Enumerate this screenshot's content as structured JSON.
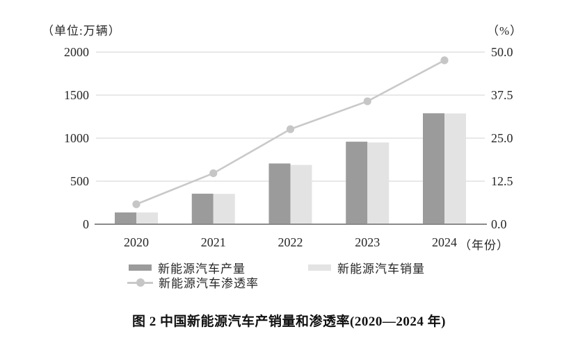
{
  "caption": "图 2  中国新能源汽车产销量和渗透率(2020—2024 年)",
  "chart_data": {
    "type": "combo",
    "title": "中国新能源汽车产销量和渗透率(2020—2024 年)",
    "categories": [
      "2020",
      "2021",
      "2022",
      "2023",
      "2024"
    ],
    "series": [
      {
        "key": "production",
        "name": "新能源汽车产量",
        "type": "bar",
        "axis": "left",
        "color": "#9b9b9b",
        "values": [
          136.6,
          354.5,
          705.8,
          958.7,
          1288.8
        ]
      },
      {
        "key": "sales",
        "name": "新能源汽车销量",
        "type": "bar",
        "axis": "left",
        "color": "#e3e3e3",
        "values": [
          136.7,
          352.1,
          688.7,
          949.5,
          1286.6
        ]
      },
      {
        "key": "penetration",
        "name": "新能源汽车渗透率",
        "type": "line",
        "axis": "right",
        "color": "#c9c9c9",
        "marker_color": "#c6c6c6",
        "values": [
          5.8,
          14.8,
          27.6,
          35.7,
          47.6
        ]
      }
    ],
    "left_axis": {
      "unit_label": "（单位:万辆）",
      "range": [
        0,
        2000
      ],
      "ticks": [
        0,
        500,
        1000,
        1500,
        2000
      ],
      "tick_labels": [
        "0",
        "500",
        "1000",
        "1500",
        "2000"
      ]
    },
    "right_axis": {
      "unit_label": "（%）",
      "range": [
        0,
        50
      ],
      "ticks": [
        0,
        12.5,
        25,
        37.5,
        50
      ],
      "tick_labels": [
        "0.0",
        "12.5",
        "25.0",
        "37.5",
        "50.0"
      ]
    },
    "x_axis_suffix": "（年份）",
    "grid": true,
    "legend_position": "bottom",
    "colors": {
      "gridline": "#d9d9d9",
      "axis_line": "#8a8a8a",
      "text": "#262626"
    }
  }
}
